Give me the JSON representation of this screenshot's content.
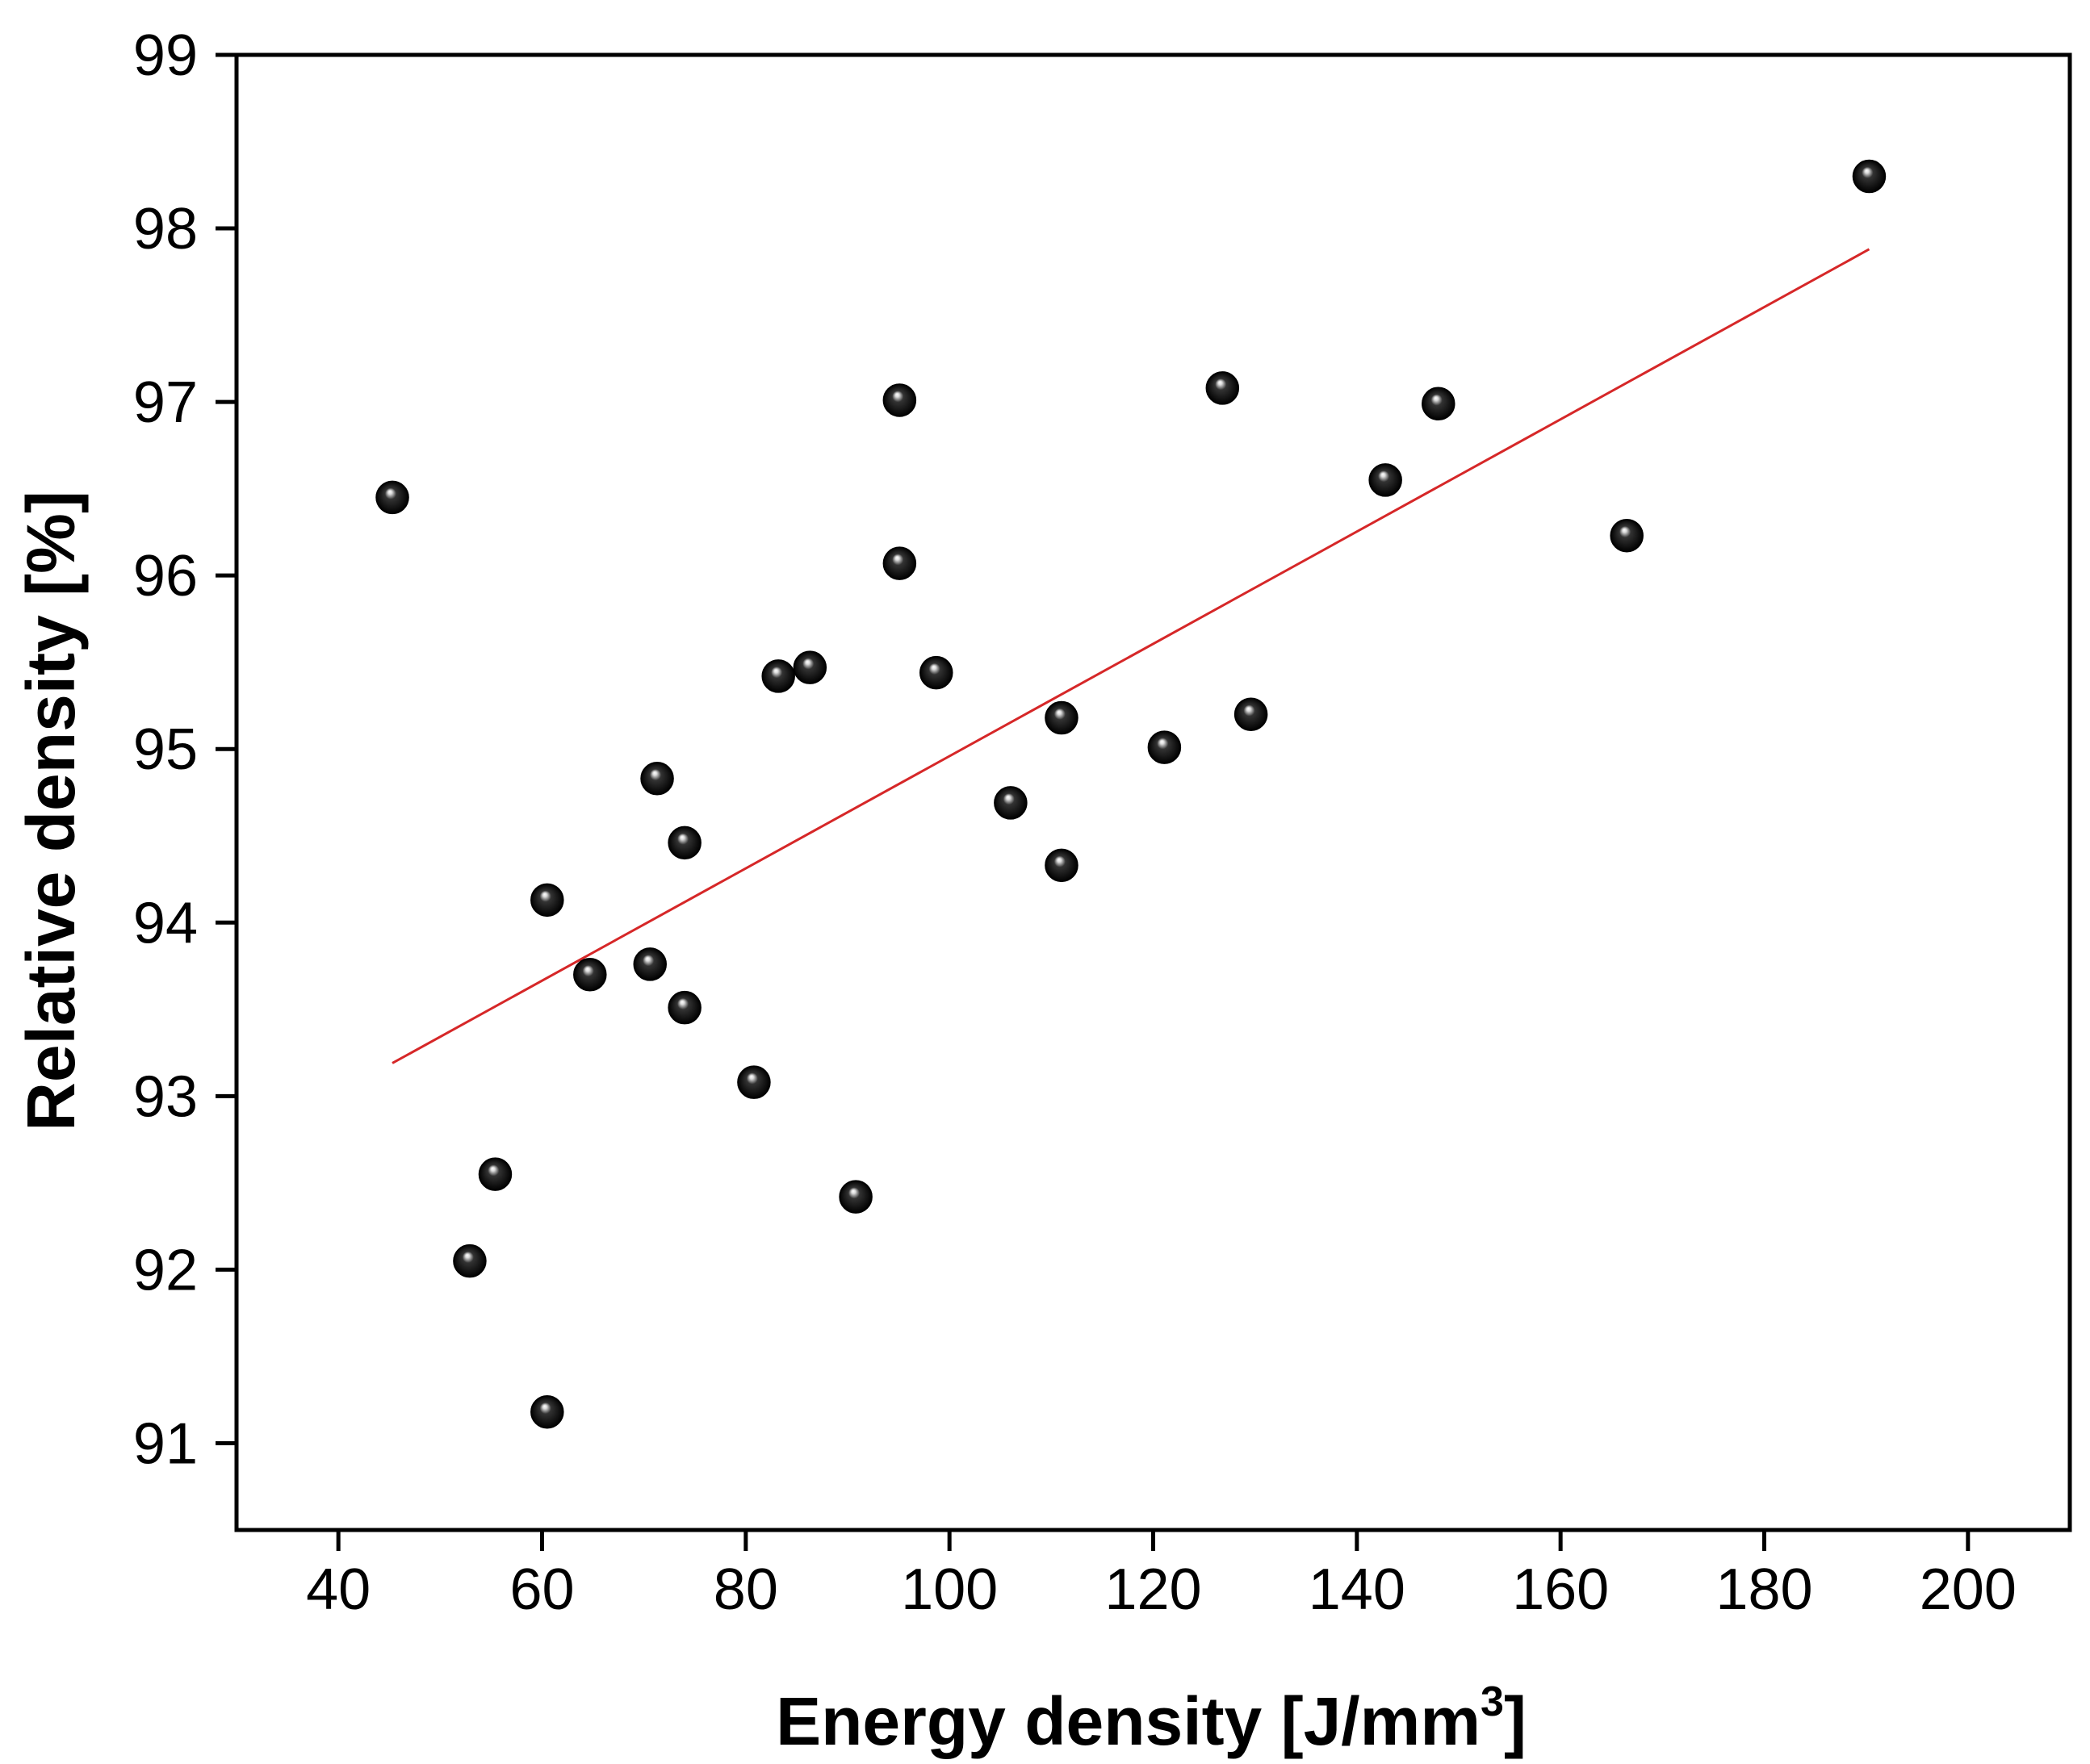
{
  "chart_data": {
    "type": "scatter",
    "title": "",
    "xlabel": "Energy density [J/mm",
    "xlabel_sup": "3",
    "xlabel_end": "]",
    "ylabel": "Relative density [%]",
    "xlim": [
      30,
      210
    ],
    "ylim": [
      90.5,
      99
    ],
    "x_ticks": [
      "40",
      "60",
      "80",
      "100",
      "120",
      "140",
      "160",
      "180",
      "200"
    ],
    "y_ticks": [
      "91",
      "92",
      "93",
      "94",
      "95",
      "96",
      "97",
      "98",
      "99"
    ],
    "grid": false,
    "points": [
      {
        "x": 45.3,
        "y": 96.45
      },
      {
        "x": 52.9,
        "y": 92.05
      },
      {
        "x": 55.4,
        "y": 92.55
      },
      {
        "x": 60.5,
        "y": 94.13
      },
      {
        "x": 60.5,
        "y": 91.18
      },
      {
        "x": 64.7,
        "y": 93.7
      },
      {
        "x": 70.6,
        "y": 93.76
      },
      {
        "x": 71.3,
        "y": 94.83
      },
      {
        "x": 74.0,
        "y": 94.46
      },
      {
        "x": 74.0,
        "y": 93.51
      },
      {
        "x": 80.8,
        "y": 93.08
      },
      {
        "x": 83.2,
        "y": 95.42
      },
      {
        "x": 86.3,
        "y": 95.47
      },
      {
        "x": 90.8,
        "y": 92.42
      },
      {
        "x": 95.1,
        "y": 97.01
      },
      {
        "x": 95.1,
        "y": 96.07
      },
      {
        "x": 98.7,
        "y": 95.44
      },
      {
        "x": 106.0,
        "y": 94.69
      },
      {
        "x": 111.0,
        "y": 95.18
      },
      {
        "x": 111.0,
        "y": 94.33
      },
      {
        "x": 121.1,
        "y": 95.01
      },
      {
        "x": 126.8,
        "y": 97.08
      },
      {
        "x": 129.6,
        "y": 95.2
      },
      {
        "x": 142.8,
        "y": 96.55
      },
      {
        "x": 148.0,
        "y": 96.99
      },
      {
        "x": 166.5,
        "y": 96.23
      },
      {
        "x": 190.3,
        "y": 98.3
      }
    ],
    "fit_line": {
      "x": [
        45.3,
        190.3
      ],
      "y": [
        93.19,
        97.88
      ]
    },
    "colors": {
      "points": "#111111",
      "fit_line": "#d62728",
      "axes": "#000000"
    }
  }
}
